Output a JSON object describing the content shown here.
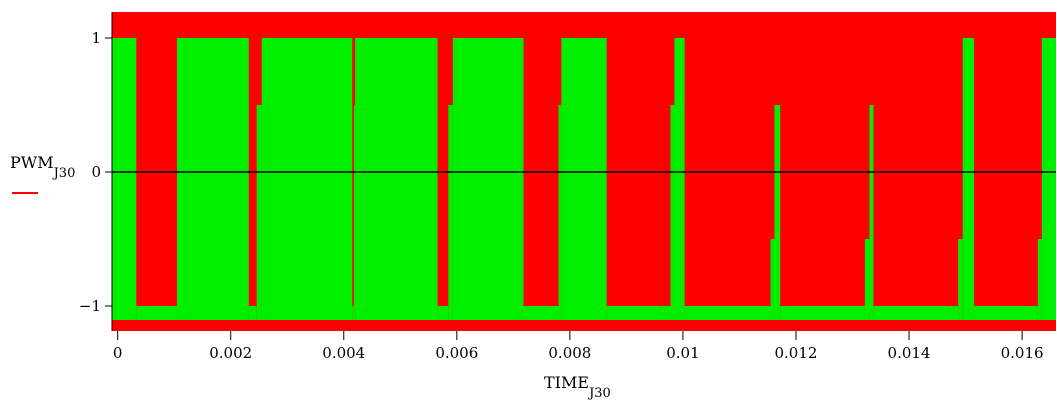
{
  "chart_data": {
    "type": "area",
    "xlabel": {
      "main": "TIME",
      "sub": "J30"
    },
    "ylabel": {
      "main": "PWM",
      "sub": "J30"
    },
    "xlim": [
      -0.0001,
      0.0166
    ],
    "ylim": [
      -1.2,
      1.2
    ],
    "x_ticks": [
      {
        "value": 0,
        "label": "0"
      },
      {
        "value": 0.002,
        "label": "0.002"
      },
      {
        "value": 0.004,
        "label": "0.004"
      },
      {
        "value": 0.006,
        "label": "0.006"
      },
      {
        "value": 0.008,
        "label": "0.008"
      },
      {
        "value": 0.01,
        "label": "0.01"
      },
      {
        "value": 0.012,
        "label": "0.012"
      },
      {
        "value": 0.014,
        "label": "0.014"
      },
      {
        "value": 0.016,
        "label": "0.016"
      }
    ],
    "y_ticks": [
      {
        "value": 1,
        "label": "1"
      },
      {
        "value": 0,
        "label": "0"
      },
      {
        "value": -1,
        "label": "−1"
      }
    ],
    "colors": {
      "background": "#ff0000",
      "fill": "#00ee00",
      "zero_line": "#000000",
      "legend_line": "#ff0000"
    },
    "series": [
      {
        "legend_color": "#ff0000",
        "pulses": [
          {
            "x0": -0.0001,
            "x1": 0.00033,
            "level": 1
          },
          {
            "x0": 0.00033,
            "x1": 0.00105,
            "level": -1
          },
          {
            "x0": 0.00105,
            "x1": 0.00232,
            "level": 1
          },
          {
            "x0": 0.00232,
            "x1": 0.00246,
            "level": -1
          },
          {
            "x0": 0.00246,
            "x1": 0.00255,
            "level": 0.5
          },
          {
            "x0": 0.00255,
            "x1": 0.00415,
            "level": 1
          },
          {
            "x0": 0.00415,
            "x1": 0.00418,
            "level": -1
          },
          {
            "x0": 0.00418,
            "x1": 0.0042,
            "level": 0.5
          },
          {
            "x0": 0.0042,
            "x1": 0.00566,
            "level": 1
          },
          {
            "x0": 0.00566,
            "x1": 0.00585,
            "level": -1
          },
          {
            "x0": 0.00585,
            "x1": 0.00593,
            "level": 0.5
          },
          {
            "x0": 0.00593,
            "x1": 0.00718,
            "level": 1
          },
          {
            "x0": 0.00718,
            "x1": 0.0078,
            "level": -1
          },
          {
            "x0": 0.0078,
            "x1": 0.00785,
            "level": 0.5
          },
          {
            "x0": 0.00785,
            "x1": 0.00865,
            "level": 1
          },
          {
            "x0": 0.00865,
            "x1": 0.00978,
            "level": -1
          },
          {
            "x0": 0.00978,
            "x1": 0.00985,
            "level": 0.5
          },
          {
            "x0": 0.00985,
            "x1": 0.01003,
            "level": 1
          },
          {
            "x0": 0.01003,
            "x1": 0.01155,
            "level": -1
          },
          {
            "x0": 0.01155,
            "x1": 0.01162,
            "level": -0.5
          },
          {
            "x0": 0.01162,
            "x1": 0.01172,
            "level": 0.5
          },
          {
            "x0": 0.01172,
            "x1": 0.01322,
            "level": -1
          },
          {
            "x0": 0.01322,
            "x1": 0.0133,
            "level": -0.5
          },
          {
            "x0": 0.0133,
            "x1": 0.01337,
            "level": 0.5
          },
          {
            "x0": 0.01337,
            "x1": 0.01487,
            "level": -1
          },
          {
            "x0": 0.01487,
            "x1": 0.01495,
            "level": -0.5
          },
          {
            "x0": 0.01495,
            "x1": 0.01515,
            "level": 1
          },
          {
            "x0": 0.01515,
            "x1": 0.01628,
            "level": -1
          },
          {
            "x0": 0.01628,
            "x1": 0.01635,
            "level": -0.5
          },
          {
            "x0": 0.01635,
            "x1": 0.0166,
            "level": 1
          }
        ]
      }
    ]
  }
}
